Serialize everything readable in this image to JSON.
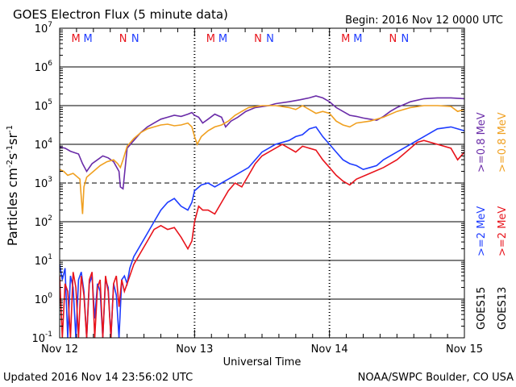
{
  "chart_data": {
    "type": "line",
    "title": "GOES Electron Flux (5 minute data)",
    "begin_label": "Begin: 2016 Nov 12 0000 UTC",
    "xlabel": "Universal Time",
    "ylabel_main": "Particles cm",
    "ylabel_sup1": "-2",
    "ylabel_mid1": "s",
    "ylabel_sup2": "-1",
    "ylabel_mid2": "sr",
    "ylabel_sup3": "-1",
    "updated": "Updated 2016 Nov 14 23:56:02 UTC",
    "credit": "NOAA/SWPC Boulder, CO USA",
    "x_ticks": [
      "Nov 12",
      "Nov 13",
      "Nov 14",
      "Nov 15"
    ],
    "xlim_days": [
      0,
      3
    ],
    "ylim_log": [
      -1,
      7
    ],
    "y_ticks": [
      {
        "base": "10",
        "exp": "7"
      },
      {
        "base": "10",
        "exp": "6"
      },
      {
        "base": "10",
        "exp": "5"
      },
      {
        "base": "10",
        "exp": "4"
      },
      {
        "base": "10",
        "exp": "3"
      },
      {
        "base": "10",
        "exp": "2"
      },
      {
        "base": "10",
        "exp": "1"
      },
      {
        "base": "10",
        "exp": "0"
      },
      {
        "base": "10",
        "exp": "-1"
      }
    ],
    "threshold_log": 3,
    "day_markers": [
      {
        "day": 0,
        "labels": [
          {
            "t": "M",
            "color": "#e8141c"
          },
          {
            "t": "M",
            "color": "#1e3cff"
          },
          {
            "t": "N",
            "color": "#e8141c"
          },
          {
            "t": "N",
            "color": "#1e3cff"
          }
        ]
      },
      {
        "day": 1,
        "labels": [
          {
            "t": "M",
            "color": "#e8141c"
          },
          {
            "t": "M",
            "color": "#1e3cff"
          },
          {
            "t": "N",
            "color": "#e8141c"
          },
          {
            "t": "N",
            "color": "#1e3cff"
          }
        ]
      },
      {
        "day": 2,
        "labels": [
          {
            "t": "M",
            "color": "#e8141c"
          },
          {
            "t": "M",
            "color": "#1e3cff"
          },
          {
            "t": "N",
            "color": "#e8141c"
          },
          {
            "t": "N",
            "color": "#1e3cff"
          }
        ]
      }
    ],
    "legend": {
      "satellites": [
        "GOES15",
        "GOES13"
      ],
      "entries": [
        {
          "label": ">=0.8 MeV",
          "color": "#6a2ca8",
          "satellite": "GOES15"
        },
        {
          "label": ">=0.8 MeV",
          "color": "#f0a020",
          "satellite": "GOES13"
        },
        {
          "label": ">=2 MeV",
          "color": "#1e3cff",
          "satellite": "GOES15"
        },
        {
          "label": ">=2 MeV",
          "color": "#e8141c",
          "satellite": "GOES13"
        }
      ]
    },
    "series": [
      {
        "name": "GOES15 >=0.8 MeV",
        "color": "#6a2ca8",
        "points": [
          [
            0,
            3.93
          ],
          [
            0.04,
            3.9
          ],
          [
            0.08,
            3.82
          ],
          [
            0.14,
            3.75
          ],
          [
            0.17,
            3.5
          ],
          [
            0.2,
            3.3
          ],
          [
            0.24,
            3.5
          ],
          [
            0.28,
            3.6
          ],
          [
            0.32,
            3.7
          ],
          [
            0.36,
            3.65
          ],
          [
            0.4,
            3.55
          ],
          [
            0.44,
            3.3
          ],
          [
            0.45,
            2.9
          ],
          [
            0.47,
            2.85
          ],
          [
            0.48,
            3.2
          ],
          [
            0.5,
            3.9
          ],
          [
            0.55,
            4.1
          ],
          [
            0.6,
            4.3
          ],
          [
            0.65,
            4.45
          ],
          [
            0.7,
            4.55
          ],
          [
            0.75,
            4.65
          ],
          [
            0.8,
            4.7
          ],
          [
            0.85,
            4.75
          ],
          [
            0.9,
            4.72
          ],
          [
            0.95,
            4.78
          ],
          [
            0.98,
            4.82
          ],
          [
            1.0,
            4.75
          ],
          [
            1.03,
            4.7
          ],
          [
            1.06,
            4.55
          ],
          [
            1.1,
            4.65
          ],
          [
            1.15,
            4.78
          ],
          [
            1.2,
            4.7
          ],
          [
            1.23,
            4.45
          ],
          [
            1.27,
            4.6
          ],
          [
            1.32,
            4.7
          ],
          [
            1.38,
            4.85
          ],
          [
            1.45,
            4.95
          ],
          [
            1.55,
            5.0
          ],
          [
            1.6,
            5.05
          ],
          [
            1.7,
            5.1
          ],
          [
            1.78,
            5.15
          ],
          [
            1.85,
            5.2
          ],
          [
            1.9,
            5.25
          ],
          [
            1.95,
            5.2
          ],
          [
            2.0,
            5.1
          ],
          [
            2.05,
            4.95
          ],
          [
            2.1,
            4.85
          ],
          [
            2.15,
            4.75
          ],
          [
            2.2,
            4.72
          ],
          [
            2.25,
            4.68
          ],
          [
            2.3,
            4.65
          ],
          [
            2.35,
            4.62
          ],
          [
            2.4,
            4.72
          ],
          [
            2.45,
            4.85
          ],
          [
            2.5,
            4.95
          ],
          [
            2.6,
            5.1
          ],
          [
            2.7,
            5.18
          ],
          [
            2.8,
            5.2
          ],
          [
            2.9,
            5.2
          ],
          [
            3.0,
            5.18
          ]
        ]
      },
      {
        "name": "GOES13 >=0.8 MeV",
        "color": "#f0a020",
        "points": [
          [
            0,
            3.35
          ],
          [
            0.03,
            3.3
          ],
          [
            0.06,
            3.2
          ],
          [
            0.1,
            3.25
          ],
          [
            0.15,
            3.1
          ],
          [
            0.17,
            2.2
          ],
          [
            0.18,
            2.9
          ],
          [
            0.2,
            3.15
          ],
          [
            0.25,
            3.3
          ],
          [
            0.3,
            3.45
          ],
          [
            0.35,
            3.55
          ],
          [
            0.4,
            3.6
          ],
          [
            0.43,
            3.5
          ],
          [
            0.45,
            3.4
          ],
          [
            0.47,
            3.6
          ],
          [
            0.5,
            3.95
          ],
          [
            0.55,
            4.15
          ],
          [
            0.6,
            4.3
          ],
          [
            0.65,
            4.4
          ],
          [
            0.7,
            4.45
          ],
          [
            0.75,
            4.5
          ],
          [
            0.8,
            4.52
          ],
          [
            0.85,
            4.48
          ],
          [
            0.9,
            4.5
          ],
          [
            0.95,
            4.55
          ],
          [
            0.98,
            4.45
          ],
          [
            1.0,
            4.2
          ],
          [
            1.02,
            4.0
          ],
          [
            1.05,
            4.2
          ],
          [
            1.1,
            4.35
          ],
          [
            1.15,
            4.45
          ],
          [
            1.2,
            4.5
          ],
          [
            1.25,
            4.6
          ],
          [
            1.3,
            4.75
          ],
          [
            1.35,
            4.85
          ],
          [
            1.4,
            4.95
          ],
          [
            1.5,
            5.0
          ],
          [
            1.6,
            5.0
          ],
          [
            1.7,
            4.95
          ],
          [
            1.75,
            4.9
          ],
          [
            1.8,
            5.0
          ],
          [
            1.85,
            4.9
          ],
          [
            1.9,
            4.8
          ],
          [
            1.95,
            4.85
          ],
          [
            2.0,
            4.8
          ],
          [
            2.05,
            4.6
          ],
          [
            2.1,
            4.5
          ],
          [
            2.15,
            4.45
          ],
          [
            2.2,
            4.55
          ],
          [
            2.3,
            4.6
          ],
          [
            2.4,
            4.7
          ],
          [
            2.5,
            4.85
          ],
          [
            2.6,
            4.95
          ],
          [
            2.7,
            5.0
          ],
          [
            2.8,
            5.0
          ],
          [
            2.9,
            4.98
          ],
          [
            2.95,
            4.85
          ],
          [
            3.0,
            4.9
          ]
        ]
      },
      {
        "name": "GOES15 >=2 MeV",
        "color": "#1e3cff",
        "points": [
          [
            0,
            0.9
          ],
          [
            0.02,
            0.5
          ],
          [
            0.04,
            0.8
          ],
          [
            0.06,
            -1.0
          ],
          [
            0.08,
            0.6
          ],
          [
            0.1,
            0.3
          ],
          [
            0.12,
            -1.0
          ],
          [
            0.14,
            0.5
          ],
          [
            0.16,
            0.7
          ],
          [
            0.18,
            0.2
          ],
          [
            0.2,
            -1.0
          ],
          [
            0.22,
            0.4
          ],
          [
            0.24,
            0.6
          ],
          [
            0.26,
            -0.5
          ],
          [
            0.28,
            0.4
          ],
          [
            0.3,
            0.2
          ],
          [
            0.32,
            -1.0
          ],
          [
            0.34,
            0.5
          ],
          [
            0.36,
            0.3
          ],
          [
            0.38,
            -1.0
          ],
          [
            0.4,
            0.4
          ],
          [
            0.42,
            0.1
          ],
          [
            0.44,
            -1.0
          ],
          [
            0.46,
            0.5
          ],
          [
            0.48,
            0.6
          ],
          [
            0.5,
            0.4
          ],
          [
            0.52,
            0.8
          ],
          [
            0.55,
            1.1
          ],
          [
            0.6,
            1.4
          ],
          [
            0.65,
            1.7
          ],
          [
            0.7,
            2.0
          ],
          [
            0.75,
            2.3
          ],
          [
            0.8,
            2.5
          ],
          [
            0.85,
            2.6
          ],
          [
            0.9,
            2.4
          ],
          [
            0.95,
            2.3
          ],
          [
            0.98,
            2.5
          ],
          [
            1.0,
            2.8
          ],
          [
            1.05,
            2.95
          ],
          [
            1.1,
            3.0
          ],
          [
            1.15,
            2.9
          ],
          [
            1.2,
            3.0
          ],
          [
            1.25,
            3.1
          ],
          [
            1.3,
            3.2
          ],
          [
            1.4,
            3.4
          ],
          [
            1.5,
            3.8
          ],
          [
            1.6,
            4.0
          ],
          [
            1.7,
            4.1
          ],
          [
            1.75,
            4.2
          ],
          [
            1.8,
            4.25
          ],
          [
            1.85,
            4.4
          ],
          [
            1.9,
            4.45
          ],
          [
            1.95,
            4.2
          ],
          [
            2.0,
            4.0
          ],
          [
            2.05,
            3.8
          ],
          [
            2.1,
            3.6
          ],
          [
            2.15,
            3.5
          ],
          [
            2.2,
            3.45
          ],
          [
            2.25,
            3.35
          ],
          [
            2.3,
            3.4
          ],
          [
            2.35,
            3.45
          ],
          [
            2.4,
            3.6
          ],
          [
            2.5,
            3.8
          ],
          [
            2.6,
            4.0
          ],
          [
            2.7,
            4.2
          ],
          [
            2.8,
            4.4
          ],
          [
            2.9,
            4.45
          ],
          [
            3.0,
            4.35
          ]
        ]
      },
      {
        "name": "GOES13 >=2 MeV",
        "color": "#e8141c",
        "points": [
          [
            0,
            0.6
          ],
          [
            0.02,
            -1.0
          ],
          [
            0.04,
            0.4
          ],
          [
            0.06,
            0.2
          ],
          [
            0.08,
            -1.0
          ],
          [
            0.1,
            0.7
          ],
          [
            0.12,
            0.3
          ],
          [
            0.14,
            -1.0
          ],
          [
            0.16,
            0.6
          ],
          [
            0.18,
            0.1
          ],
          [
            0.2,
            -1.0
          ],
          [
            0.22,
            0.5
          ],
          [
            0.24,
            0.7
          ],
          [
            0.26,
            -1.0
          ],
          [
            0.28,
            0.3
          ],
          [
            0.3,
            0.5
          ],
          [
            0.32,
            -1.0
          ],
          [
            0.34,
            0.6
          ],
          [
            0.36,
            0.2
          ],
          [
            0.38,
            -1.0
          ],
          [
            0.4,
            0.4
          ],
          [
            0.42,
            0.6
          ],
          [
            0.44,
            -0.2
          ],
          [
            0.46,
            0.5
          ],
          [
            0.48,
            0.2
          ],
          [
            0.5,
            0.4
          ],
          [
            0.52,
            0.6
          ],
          [
            0.55,
            0.9
          ],
          [
            0.6,
            1.2
          ],
          [
            0.65,
            1.5
          ],
          [
            0.7,
            1.8
          ],
          [
            0.75,
            1.9
          ],
          [
            0.8,
            1.8
          ],
          [
            0.85,
            1.85
          ],
          [
            0.9,
            1.6
          ],
          [
            0.95,
            1.3
          ],
          [
            0.98,
            1.5
          ],
          [
            1.0,
            2.0
          ],
          [
            1.03,
            2.4
          ],
          [
            1.06,
            2.3
          ],
          [
            1.1,
            2.3
          ],
          [
            1.15,
            2.2
          ],
          [
            1.2,
            2.5
          ],
          [
            1.25,
            2.8
          ],
          [
            1.3,
            3.0
          ],
          [
            1.35,
            2.9
          ],
          [
            1.4,
            3.2
          ],
          [
            1.45,
            3.5
          ],
          [
            1.5,
            3.7
          ],
          [
            1.55,
            3.8
          ],
          [
            1.6,
            3.9
          ],
          [
            1.65,
            4.0
          ],
          [
            1.7,
            3.9
          ],
          [
            1.75,
            3.8
          ],
          [
            1.8,
            3.95
          ],
          [
            1.85,
            3.9
          ],
          [
            1.9,
            3.85
          ],
          [
            1.95,
            3.6
          ],
          [
            2.0,
            3.4
          ],
          [
            2.05,
            3.2
          ],
          [
            2.1,
            3.05
          ],
          [
            2.15,
            2.95
          ],
          [
            2.2,
            3.1
          ],
          [
            2.3,
            3.25
          ],
          [
            2.4,
            3.4
          ],
          [
            2.5,
            3.6
          ],
          [
            2.6,
            3.9
          ],
          [
            2.65,
            4.05
          ],
          [
            2.7,
            4.1
          ],
          [
            2.8,
            4.0
          ],
          [
            2.9,
            3.9
          ],
          [
            2.95,
            3.6
          ],
          [
            3.0,
            3.8
          ]
        ]
      }
    ]
  }
}
